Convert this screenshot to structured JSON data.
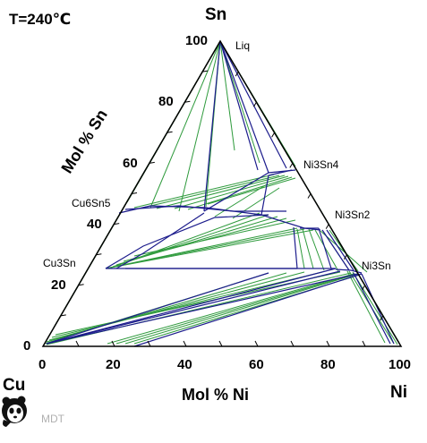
{
  "header": {
    "temperature_label": "T=240℃"
  },
  "corners": {
    "sn": "Sn",
    "cu": "Cu",
    "ni": "Ni"
  },
  "axes": {
    "left_title": "Mol % Sn",
    "bottom_title": "Mol % Ni",
    "left_ticks": [
      "0",
      "20",
      "40",
      "60",
      "80",
      "100"
    ],
    "bottom_ticks": [
      "0",
      "20",
      "40",
      "60",
      "80",
      "100"
    ]
  },
  "phases": {
    "liq": "Liq",
    "cu6sn5": "Cu6Sn5",
    "cu3sn": "Cu3Sn",
    "ni3sn4": "Ni3Sn4",
    "ni3sn2": "Ni3Sn2",
    "ni3sn": "Ni3Sn"
  },
  "watermark": {
    "text": "MDT",
    "logo": "panda-logo-icon"
  },
  "colors": {
    "tie_line": "#2e9a3c",
    "boundary": "#1c1c8c",
    "frame": "#000000"
  }
}
